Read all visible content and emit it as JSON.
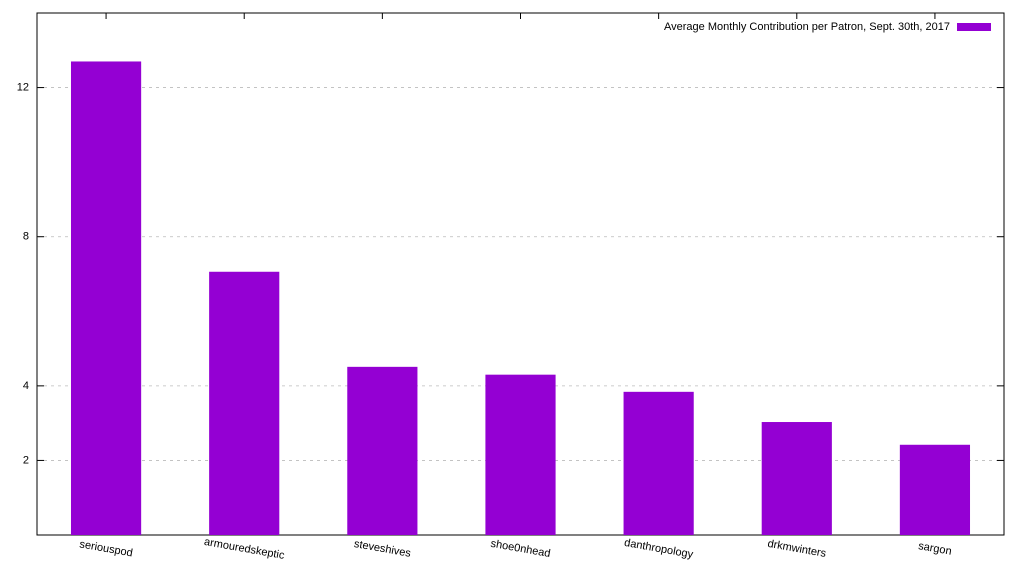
{
  "chart_data": {
    "type": "bar",
    "categories": [
      "seriouspod",
      "armouredskeptic",
      "steveshives",
      "shoe0nhead",
      "danthropology",
      "drkmwinters",
      "sargon"
    ],
    "series": [
      {
        "name": "Average Monthly Contribution per Patron, Sept. 30th, 2017",
        "color": "#9400d3",
        "values": [
          12.7,
          7.06,
          4.51,
          4.3,
          3.84,
          3.03,
          2.42
        ]
      }
    ],
    "ylim": [
      0,
      14
    ],
    "yticks": [
      2,
      4,
      8,
      12
    ],
    "grid": true,
    "legend": "top-right"
  }
}
